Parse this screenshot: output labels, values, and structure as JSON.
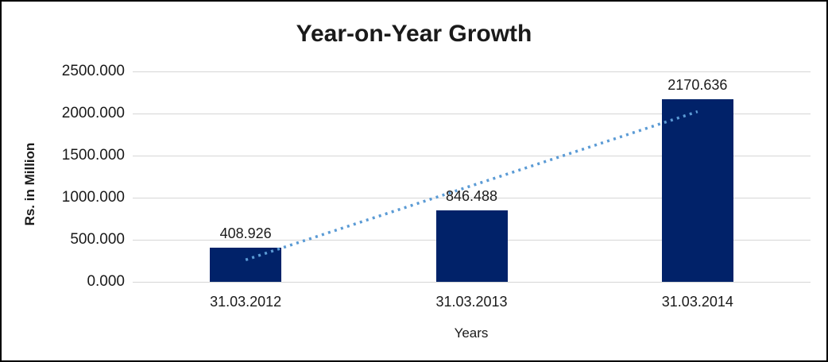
{
  "frame": {
    "background": "#ffffff",
    "border_color": "#000000"
  },
  "chart_data": {
    "type": "bar",
    "title": "Year-on-Year Growth",
    "xlabel": "Years",
    "ylabel": "Rs. in Million",
    "categories": [
      "31.03.2012",
      "31.03.2013",
      "31.03.2014"
    ],
    "values": [
      408.926,
      846.488,
      2170.636
    ],
    "data_labels": [
      "408.926",
      "846.488",
      "2170.636"
    ],
    "ylim": [
      0,
      2500
    ],
    "ytick_labels": [
      "0.000",
      "500.000",
      "1000.000",
      "1500.000",
      "2000.000",
      "2500.000"
    ],
    "grid": "horizontal",
    "legend": "none",
    "bar_color": "#012269",
    "gridline_color": "#d6d6d6",
    "trendline": {
      "type": "linear",
      "style": "dotted",
      "color": "#5b9bd5",
      "start_value": 261.2,
      "end_value": 2022.9
    }
  }
}
